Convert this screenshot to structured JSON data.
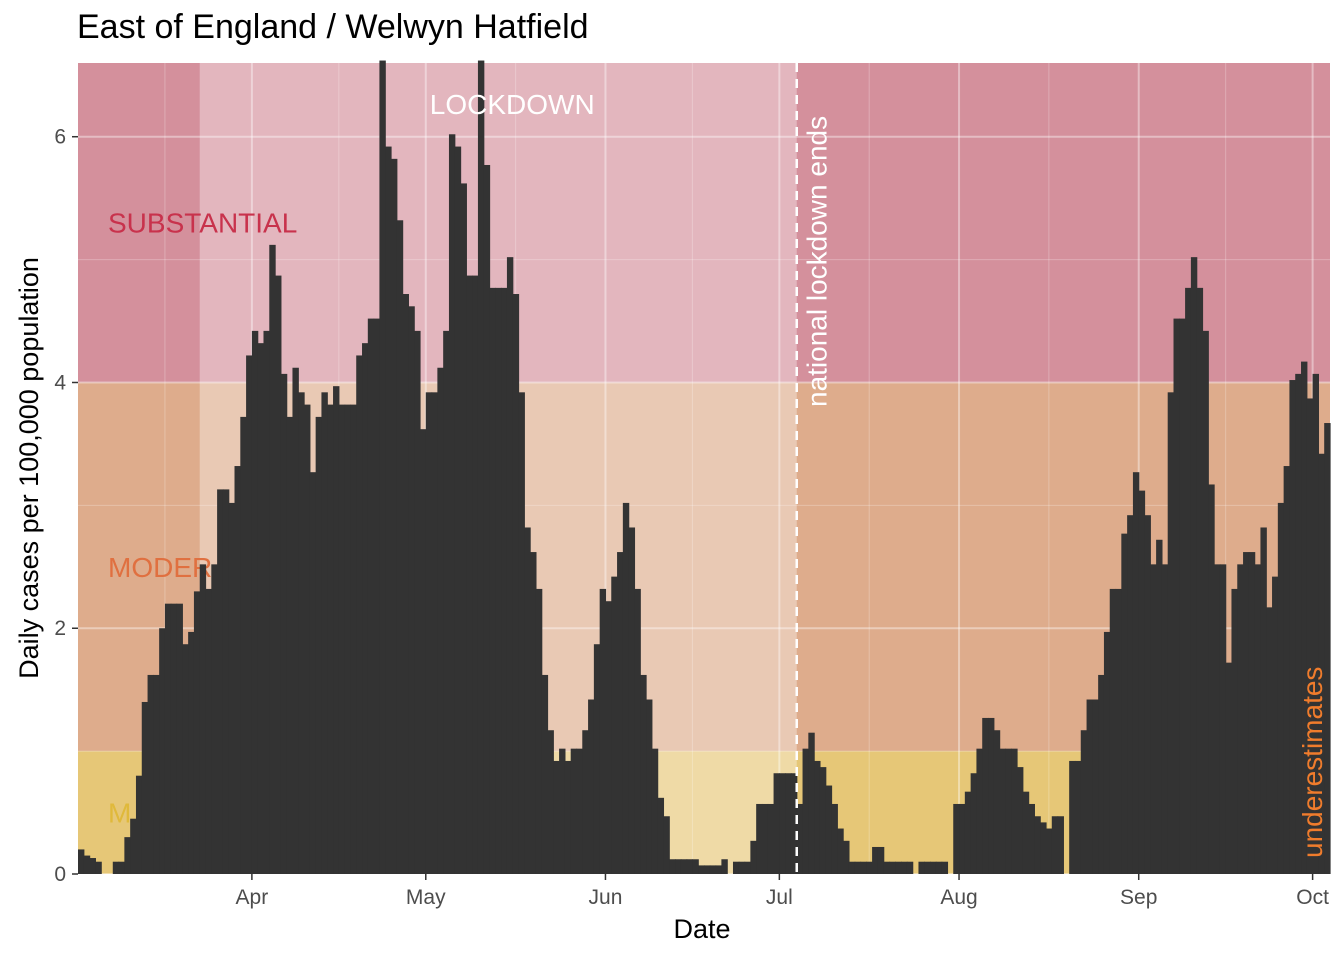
{
  "chart_data": {
    "type": "bar",
    "title": "East of England / Welwyn Hatfield",
    "xlabel": "Date",
    "ylabel": "Daily cases per 100,000 population",
    "x_start": "2020-03-02",
    "x_end": "2020-10-03",
    "ylim": [
      0,
      6.6
    ],
    "y_ticks": [
      0,
      2,
      4,
      6
    ],
    "x_ticks": [
      {
        "label": "Apr",
        "date": "2020-04-01"
      },
      {
        "label": "May",
        "date": "2020-05-01"
      },
      {
        "label": "Jun",
        "date": "2020-06-01"
      },
      {
        "label": "Jul",
        "date": "2020-07-01"
      },
      {
        "label": "Aug",
        "date": "2020-08-01"
      },
      {
        "label": "Sep",
        "date": "2020-09-01"
      },
      {
        "label": "Oct",
        "date": "2020-10-01"
      }
    ],
    "bands": [
      {
        "label": "M",
        "from": 0,
        "to": 1,
        "color": "#e6c777",
        "text_color": "#e0b93b"
      },
      {
        "label": "MODERATE",
        "from": 1,
        "to": 4,
        "color": "#deac8c",
        "text_color": "#e07040"
      },
      {
        "label": "SUBSTANTIAL",
        "from": 4,
        "to": 6.6,
        "color": "#d4909c",
        "text_color": "#c8324c"
      }
    ],
    "shaded_period": {
      "label": "LOCKDOWN",
      "from": "2020-03-23",
      "to": "2020-07-04",
      "color": "#ffffff"
    },
    "annotations": [
      {
        "text": "national lockdown ends",
        "date": "2020-07-04",
        "color": "#ffffff"
      },
      {
        "text": "underestimates",
        "color": "#f07c2c"
      }
    ],
    "grid": true,
    "bar_color": "#333333",
    "values": [
      0.2,
      0.15,
      0.13,
      0.1,
      0.0,
      0.0,
      0.1,
      0.1,
      0.3,
      0.45,
      0.8,
      1.4,
      1.62,
      1.62,
      2.0,
      2.2,
      2.2,
      2.2,
      1.87,
      1.97,
      2.3,
      2.52,
      2.32,
      2.52,
      3.13,
      3.13,
      3.02,
      3.32,
      3.72,
      4.22,
      4.42,
      4.32,
      4.42,
      5.12,
      4.87,
      4.07,
      3.72,
      4.12,
      3.92,
      3.82,
      3.27,
      3.72,
      3.92,
      3.82,
      3.97,
      3.82,
      3.82,
      3.82,
      4.22,
      4.32,
      4.52,
      4.52,
      6.62,
      5.92,
      5.82,
      5.32,
      4.72,
      4.62,
      4.42,
      3.62,
      3.92,
      3.92,
      4.12,
      4.42,
      6.02,
      5.92,
      5.62,
      4.87,
      4.87,
      6.62,
      5.77,
      4.77,
      4.77,
      4.77,
      5.02,
      4.72,
      3.92,
      2.82,
      2.62,
      2.32,
      1.62,
      1.17,
      0.92,
      1.02,
      0.92,
      1.02,
      1.02,
      1.17,
      1.42,
      1.87,
      2.32,
      2.22,
      2.42,
      2.62,
      3.02,
      2.82,
      2.32,
      1.62,
      1.42,
      1.02,
      0.62,
      0.47,
      0.12,
      0.12,
      0.12,
      0.12,
      0.12,
      0.07,
      0.07,
      0.07,
      0.07,
      0.12,
      0.0,
      0.1,
      0.1,
      0.1,
      0.27,
      0.57,
      0.57,
      0.57,
      0.82,
      0.82,
      0.82,
      0.82,
      0.57,
      1.02,
      1.15,
      0.92,
      0.87,
      0.72,
      0.57,
      0.37,
      0.27,
      0.1,
      0.1,
      0.1,
      0.1,
      0.22,
      0.22,
      0.1,
      0.1,
      0.1,
      0.1,
      0.1,
      0.0,
      0.1,
      0.1,
      0.1,
      0.1,
      0.1,
      0.0,
      0.57,
      0.57,
      0.67,
      0.82,
      1.02,
      1.27,
      1.27,
      1.17,
      1.02,
      1.02,
      1.02,
      0.87,
      0.67,
      0.57,
      0.47,
      0.42,
      0.37,
      0.47,
      0.47,
      0.0,
      0.92,
      0.92,
      1.17,
      1.42,
      1.42,
      1.62,
      1.97,
      2.32,
      2.32,
      2.77,
      2.92,
      3.27,
      3.12,
      2.92,
      2.52,
      2.72,
      2.52,
      3.92,
      4.52,
      4.52,
      4.77,
      5.02,
      4.77,
      4.42,
      3.17,
      2.52,
      2.52,
      1.72,
      2.32,
      2.52,
      2.62,
      2.62,
      2.52,
      2.82,
      2.17,
      2.42,
      3.02,
      3.32,
      4.02,
      4.07,
      4.17,
      3.87,
      4.07,
      3.42,
      3.67
    ]
  }
}
